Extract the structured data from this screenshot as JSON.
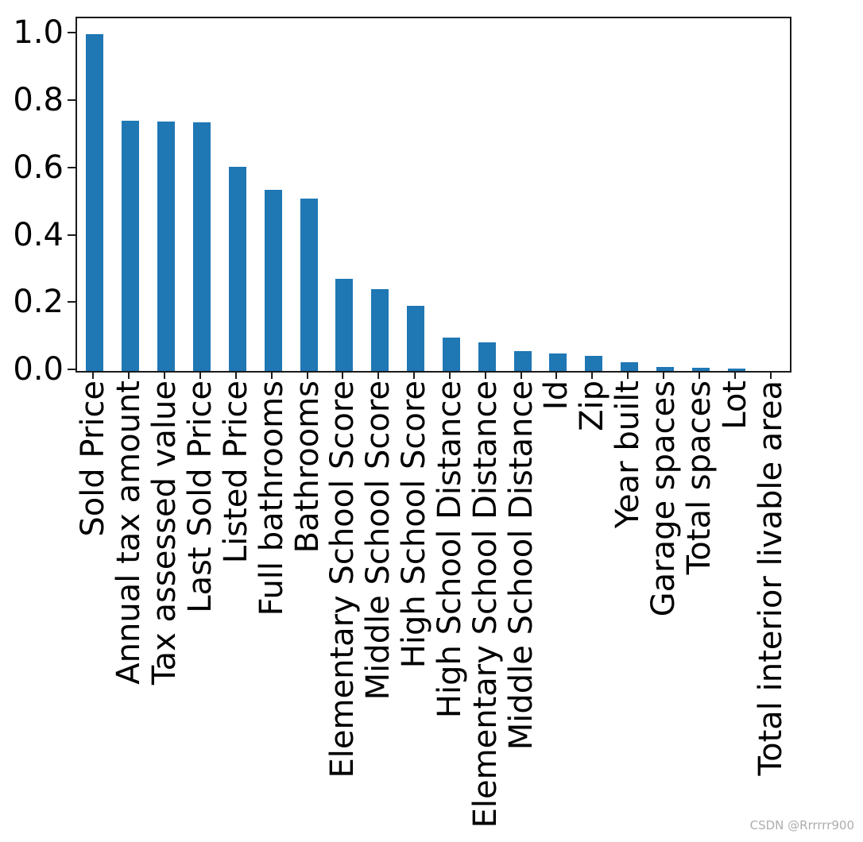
{
  "watermark": "CSDN @Rrrrrr900",
  "colors": {
    "bar": "#1f77b4",
    "axis": "#1a1a1a",
    "tick_label": "#000000",
    "watermark": "#adadad",
    "background": "#ffffff"
  },
  "chart_data": {
    "type": "bar",
    "title": "",
    "xlabel": "",
    "ylabel": "",
    "categories": [
      "Sold Price",
      "Annual tax amount",
      "Tax assessed value",
      "Last Sold Price",
      "Listed Price",
      "Full bathrooms",
      "Bathrooms",
      "Elementary School Score",
      "Middle School Score",
      "High School Score",
      "High School Distance",
      "Elementary School Distance",
      "Middle School Distance",
      "Id",
      "Zip",
      "Year built",
      "Garage spaces",
      "Total spaces",
      "Lot",
      "Total interior livable area"
    ],
    "values": [
      1.0,
      0.744,
      0.741,
      0.739,
      0.606,
      0.537,
      0.513,
      0.274,
      0.242,
      0.193,
      0.1,
      0.084,
      0.058,
      0.051,
      0.046,
      0.026,
      0.012,
      0.009,
      0.008,
      0.0005
    ],
    "ylim": [
      0,
      1.048
    ],
    "yticks": [
      0.0,
      0.2,
      0.4,
      0.6,
      0.8,
      1.0
    ],
    "ytick_labels": [
      "0.0",
      "0.2",
      "0.4",
      "0.6",
      "0.8",
      "1.0"
    ],
    "xtick_label_rotation": 90,
    "grid": false,
    "legend": null,
    "bar_width_fraction": 0.5
  }
}
